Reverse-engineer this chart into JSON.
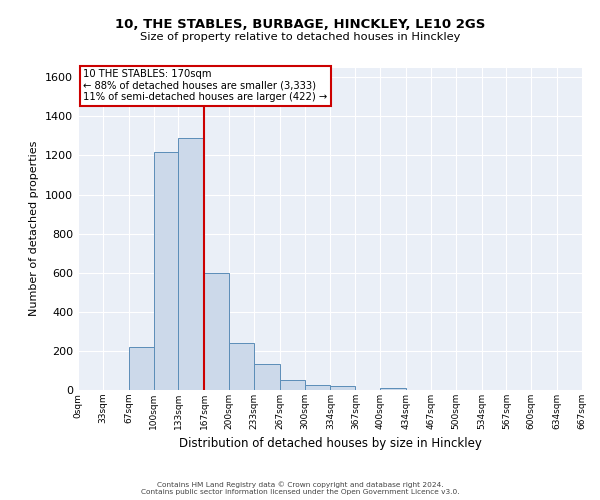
{
  "title": "10, THE STABLES, BURBAGE, HINCKLEY, LE10 2GS",
  "subtitle": "Size of property relative to detached houses in Hinckley",
  "xlabel": "Distribution of detached houses by size in Hinckley",
  "ylabel": "Number of detached properties",
  "bin_edges": [
    0,
    33,
    67,
    100,
    133,
    167,
    200,
    233,
    267,
    300,
    334,
    367,
    400,
    434,
    467,
    500,
    534,
    567,
    600,
    634,
    667
  ],
  "bin_counts": [
    0,
    0,
    220,
    1220,
    1290,
    600,
    240,
    135,
    50,
    25,
    20,
    0,
    10,
    0,
    0,
    0,
    0,
    0,
    0,
    0
  ],
  "bar_facecolor": "#ccd9ea",
  "bar_edgecolor": "#5b8db8",
  "property_line_x": 167,
  "property_line_color": "#cc0000",
  "annotation_box_edgecolor": "#cc0000",
  "annotation_text_line1": "10 THE STABLES: 170sqm",
  "annotation_text_line2": "← 88% of detached houses are smaller (3,333)",
  "annotation_text_line3": "11% of semi-detached houses are larger (422) →",
  "ylim": [
    0,
    1650
  ],
  "yticks": [
    0,
    200,
    400,
    600,
    800,
    1000,
    1200,
    1400,
    1600
  ],
  "tick_labels": [
    "0sqm",
    "33sqm",
    "67sqm",
    "100sqm",
    "133sqm",
    "167sqm",
    "200sqm",
    "233sqm",
    "267sqm",
    "300sqm",
    "334sqm",
    "367sqm",
    "400sqm",
    "434sqm",
    "467sqm",
    "500sqm",
    "534sqm",
    "567sqm",
    "600sqm",
    "634sqm",
    "667sqm"
  ],
  "footer_line1": "Contains HM Land Registry data © Crown copyright and database right 2024.",
  "footer_line2": "Contains public sector information licensed under the Open Government Licence v3.0.",
  "background_color": "#eaeff7",
  "grid_color": "#ffffff",
  "fig_background": "#ffffff"
}
